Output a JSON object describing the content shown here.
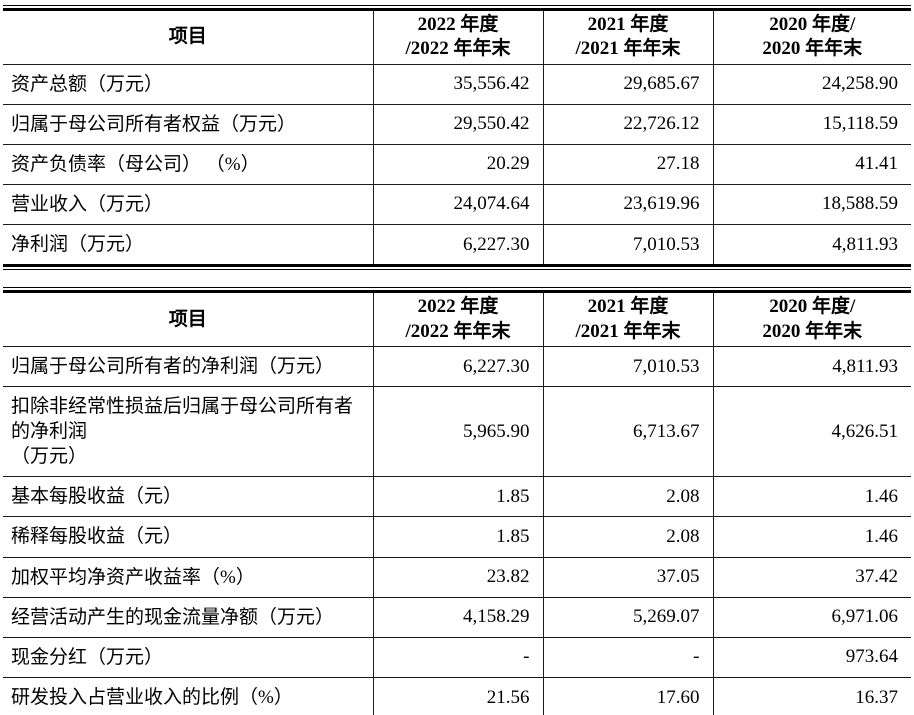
{
  "colors": {
    "text": "#000000",
    "border": "#000000",
    "background": "#ffffff"
  },
  "tables": [
    {
      "name": "key-financials-table",
      "headers": {
        "item": "项目",
        "y2022": "2022 年度\n/2022 年年末",
        "y2021": "2021 年度\n/2021 年年末",
        "y2020": "2020 年度/\n2020 年年末"
      },
      "rows": [
        {
          "label": "资产总额（万元）",
          "values": [
            "35,556.42",
            "29,685.67",
            "24,258.90"
          ]
        },
        {
          "label": "归属于母公司所有者权益（万元）",
          "values": [
            "29,550.42",
            "22,726.12",
            "15,118.59"
          ]
        },
        {
          "label": "资产负债率（母公司） （%）",
          "values": [
            "20.29",
            "27.18",
            "41.41"
          ]
        },
        {
          "label": "营业收入（万元）",
          "values": [
            "24,074.64",
            "23,619.96",
            "18,588.59"
          ]
        },
        {
          "label": "净利润（万元）",
          "values": [
            "6,227.30",
            "7,010.53",
            "4,811.93"
          ]
        }
      ]
    },
    {
      "name": "profit-and-ratios-table",
      "headers": {
        "item": "项目",
        "y2022": "2022 年度\n/2022 年年末",
        "y2021": "2021 年度\n/2021 年年末",
        "y2020": "2020 年度/\n2020 年年末"
      },
      "rows": [
        {
          "label": "归属于母公司所有者的净利润（万元）",
          "values": [
            "6,227.30",
            "7,010.53",
            "4,811.93"
          ]
        },
        {
          "label": "扣除非经常性损益后归属于母公司所有者的净利润\n（万元）",
          "values": [
            "5,965.90",
            "6,713.67",
            "4,626.51"
          ]
        },
        {
          "label": "基本每股收益（元）",
          "values": [
            "1.85",
            "2.08",
            "1.46"
          ]
        },
        {
          "label": "稀释每股收益（元）",
          "values": [
            "1.85",
            "2.08",
            "1.46"
          ]
        },
        {
          "label": "加权平均净资产收益率（%）",
          "values": [
            "23.82",
            "37.05",
            "37.42"
          ]
        },
        {
          "label": "经营活动产生的现金流量净额（万元）",
          "values": [
            "4,158.29",
            "5,269.07",
            "6,971.06"
          ]
        },
        {
          "label": "现金分红（万元）",
          "values": [
            "-",
            "-",
            "973.64"
          ]
        },
        {
          "label": "研发投入占营业收入的比例（%）",
          "values": [
            "21.56",
            "17.60",
            "16.37"
          ]
        }
      ]
    }
  ]
}
